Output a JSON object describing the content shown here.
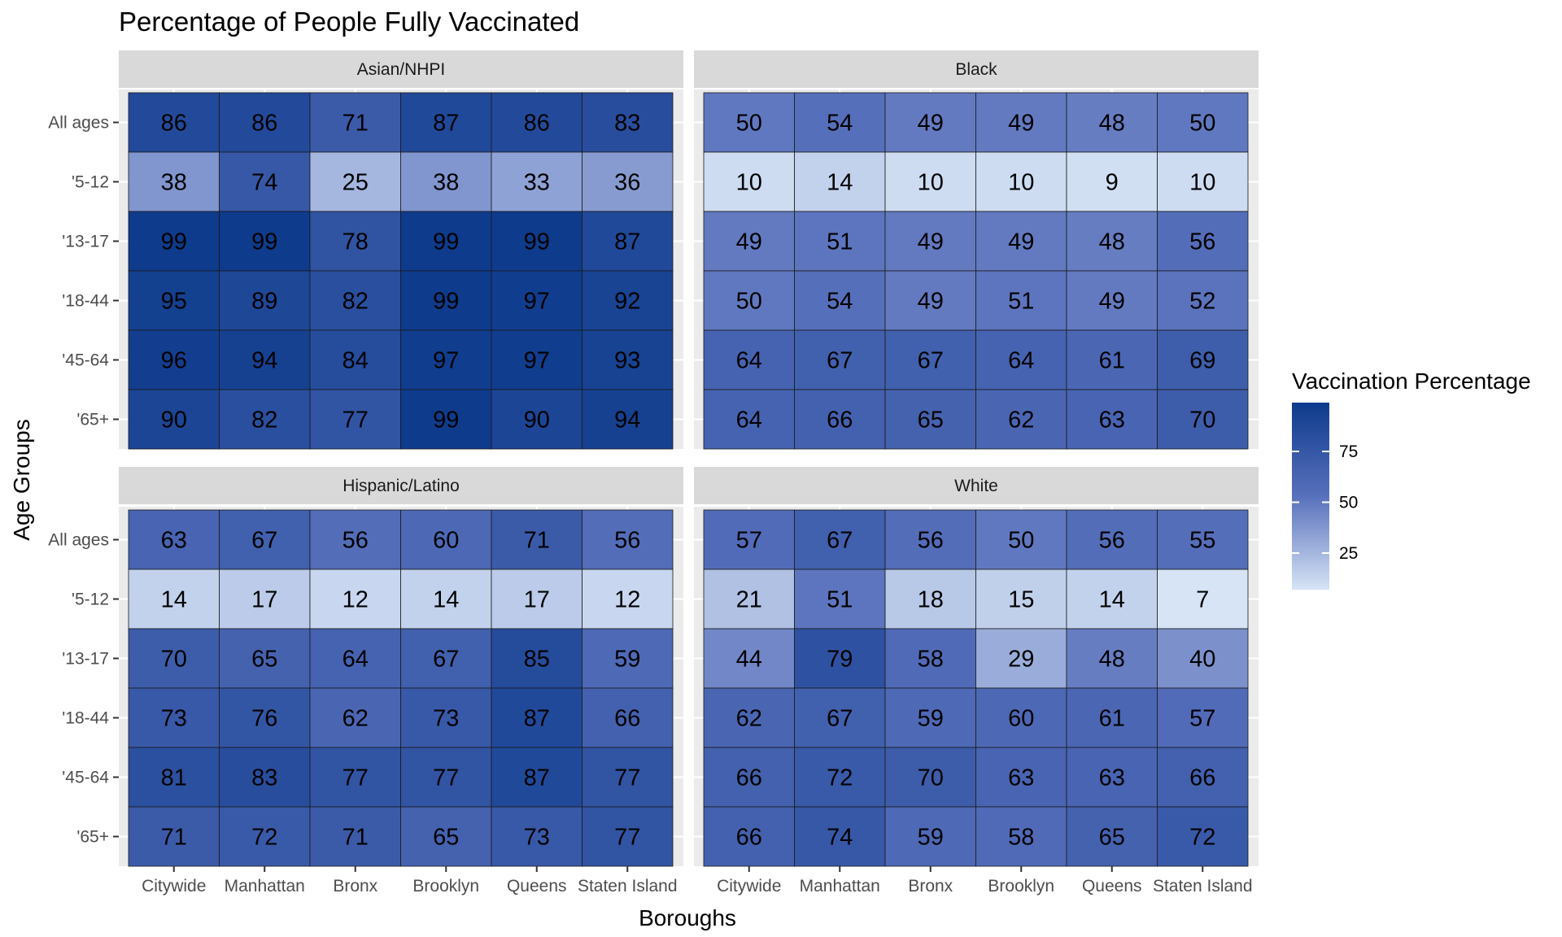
{
  "chart_data": {
    "type": "heatmap",
    "title": "Percentage of People Fully Vaccinated",
    "xlabel": "Boroughs",
    "ylabel": "Age Groups",
    "x_categories": [
      "Citywide",
      "Manhattan",
      "Bronx",
      "Brooklyn",
      "Queens",
      "Staten Island"
    ],
    "y_categories": [
      "All ages",
      "'5-12",
      "'13-17",
      "'18-44",
      "'45-64",
      "'65+"
    ],
    "facets": [
      {
        "name": "Asian/NHPI",
        "values": [
          [
            86,
            86,
            71,
            87,
            86,
            83
          ],
          [
            38,
            74,
            25,
            38,
            33,
            36
          ],
          [
            99,
            99,
            78,
            99,
            99,
            87
          ],
          [
            95,
            89,
            82,
            99,
            97,
            92
          ],
          [
            96,
            94,
            84,
            97,
            97,
            93
          ],
          [
            90,
            82,
            77,
            99,
            90,
            94
          ]
        ]
      },
      {
        "name": "Black",
        "values": [
          [
            50,
            54,
            49,
            49,
            48,
            50
          ],
          [
            10,
            14,
            10,
            10,
            9,
            10
          ],
          [
            49,
            51,
            49,
            49,
            48,
            56
          ],
          [
            50,
            54,
            49,
            51,
            49,
            52
          ],
          [
            64,
            67,
            67,
            64,
            61,
            69
          ],
          [
            64,
            66,
            65,
            62,
            63,
            70
          ]
        ]
      },
      {
        "name": "Hispanic/Latino",
        "values": [
          [
            63,
            67,
            56,
            60,
            71,
            56
          ],
          [
            14,
            17,
            12,
            14,
            17,
            12
          ],
          [
            70,
            65,
            64,
            67,
            85,
            59
          ],
          [
            73,
            76,
            62,
            73,
            87,
            66
          ],
          [
            81,
            83,
            77,
            77,
            87,
            77
          ],
          [
            71,
            72,
            71,
            65,
            73,
            77
          ]
        ]
      },
      {
        "name": "White",
        "values": [
          [
            57,
            67,
            56,
            50,
            56,
            55
          ],
          [
            21,
            51,
            18,
            15,
            14,
            7
          ],
          [
            44,
            79,
            58,
            29,
            48,
            40
          ],
          [
            62,
            67,
            59,
            60,
            61,
            57
          ],
          [
            66,
            72,
            70,
            63,
            63,
            66
          ],
          [
            66,
            74,
            59,
            58,
            65,
            72
          ]
        ]
      }
    ],
    "legend": {
      "title": "Vaccination Percentage",
      "placement": "right",
      "breaks": [
        25,
        50,
        75
      ],
      "range": [
        7,
        99
      ],
      "low_color": "#d6e4f5",
      "high_color": "#0e3b8c"
    },
    "colors": {
      "panel_background": "#ebebeb",
      "strip_background": "#d9d9d9",
      "grid": "#ffffff",
      "cell_border": "#1a1a1a"
    }
  }
}
